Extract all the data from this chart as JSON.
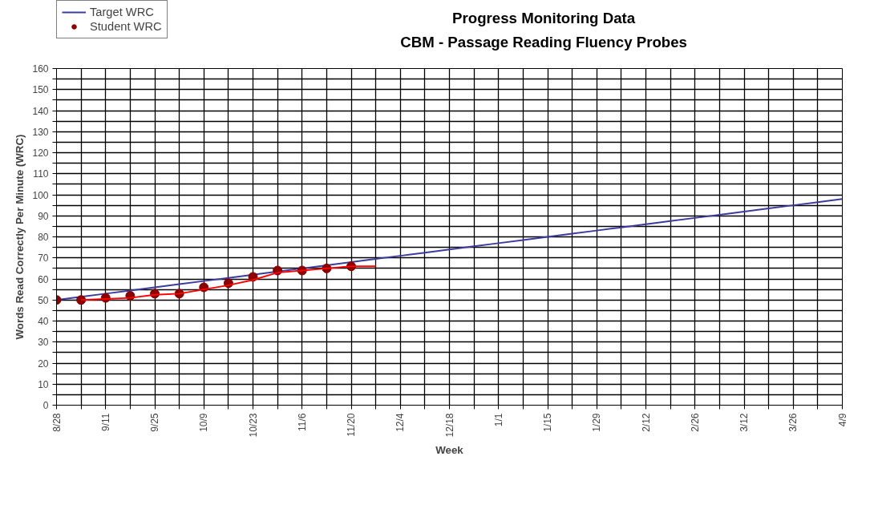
{
  "chart_data": {
    "type": "line",
    "title": "Progress Monitoring Data",
    "subtitle": "CBM - Passage Reading Fluency Probes",
    "xlabel": "Week",
    "ylabel": "Words Read Correctly Per Minute (WRC)",
    "categories": [
      "8/28",
      null,
      "9/11",
      null,
      "9/25",
      null,
      "10/9",
      null,
      "10/23",
      null,
      "11/6",
      null,
      "11/20",
      null,
      "12/4",
      null,
      "12/18",
      null,
      "1/1",
      null,
      "1/15",
      null,
      "1/29",
      null,
      "2/12",
      null,
      "2/26",
      null,
      "3/12",
      null,
      "3/26",
      null,
      "4/9"
    ],
    "series": [
      {
        "name": "Target WRC",
        "type": "line",
        "color": "#3c3c9c",
        "values": [
          50,
          51.5,
          53,
          54.5,
          56,
          57.5,
          59,
          60.5,
          62,
          63.5,
          65,
          66.5,
          68,
          69.5,
          71,
          72.5,
          74,
          75.5,
          77,
          78.5,
          80,
          81.5,
          83,
          84.5,
          86,
          87.5,
          89,
          90.5,
          92,
          93.5,
          95,
          96.5,
          98
        ]
      },
      {
        "name": "Student WRC",
        "type": "scatter",
        "marker": "circle",
        "color": "#8b0000",
        "values": [
          50,
          50,
          51,
          52,
          53,
          53,
          56,
          58,
          61,
          64,
          64,
          65,
          66,
          null,
          null,
          null,
          null,
          null,
          null,
          null,
          null,
          null,
          null,
          null,
          null,
          null,
          null,
          null,
          null,
          null,
          null,
          null,
          null
        ]
      },
      {
        "type": "line",
        "color": "#ff0000",
        "values": [
          null,
          50,
          50.5,
          51,
          52.5,
          53,
          55,
          57,
          59.5,
          63,
          64,
          65,
          66,
          66,
          null,
          null,
          null,
          null,
          null,
          null,
          null,
          null,
          null,
          null,
          null,
          null,
          null,
          null,
          null,
          null,
          null,
          null,
          null
        ]
      }
    ],
    "ylim": [
      0,
      160
    ],
    "yticks": [
      0,
      {
        "value": 5,
        "label": null
      },
      10,
      {
        "value": 15,
        "label": null
      },
      20,
      {
        "value": 25,
        "label": null
      },
      30,
      {
        "value": 35,
        "label": null
      },
      40,
      {
        "value": 45,
        "label": null
      },
      50,
      {
        "value": 55,
        "label": null
      },
      60,
      {
        "value": 65,
        "label": null
      },
      70,
      {
        "value": 75,
        "label": null
      },
      80,
      {
        "value": 85,
        "label": null
      },
      90,
      {
        "value": 95,
        "label": null
      },
      100,
      {
        "value": 105,
        "label": null
      },
      110,
      {
        "value": 115,
        "label": null
      },
      120,
      {
        "value": 125,
        "label": null
      },
      130,
      {
        "value": 135,
        "label": null
      },
      140,
      {
        "value": 145,
        "label": null
      },
      150,
      {
        "value": 155,
        "label": null
      },
      160
    ],
    "grid": true,
    "legend": "top left"
  }
}
